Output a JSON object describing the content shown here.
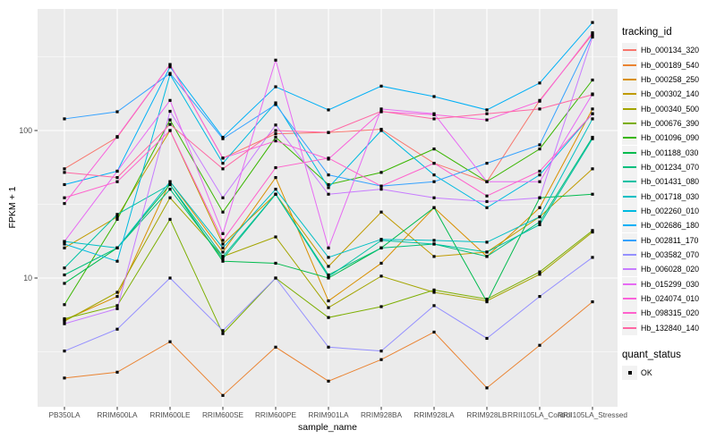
{
  "chart_data": {
    "type": "line",
    "title": "",
    "xlabel": "sample_name",
    "ylabel": "FPKM + 1",
    "y_scale": "log10",
    "ylim": [
      1.35,
      650
    ],
    "grid": true,
    "panel_bg": "#EBEBEB",
    "grid_color": "#FFFFFF",
    "legend_key_bg": "#F2F2F2",
    "tick_label_color": "#4D4D4D",
    "point_shape": "filled-square",
    "point_color": "#000000",
    "y_ticks": [
      10,
      100
    ],
    "y_minor_ticks": [
      3.162,
      31.62,
      316.2
    ],
    "categories": [
      "PB350LA",
      "RRIM600LA",
      "RRIM600LE",
      "RRIM600SE",
      "RRIM600PE",
      "RRIM901LA",
      "RRIM928BA",
      "RRIM928LA",
      "RRIM928LB",
      "RRII105LA_Control",
      "RRII105LA_Stressed"
    ],
    "legend": {
      "color_title": "tracking_id",
      "shape_title": "quant_status",
      "shape_items": [
        {
          "label": "OK"
        }
      ]
    },
    "series": [
      {
        "name": "Hb_000134_320",
        "color": "#F8766D",
        "values": [
          55,
          90,
          280,
          65,
          95,
          97,
          102,
          60,
          45,
          160,
          450
        ]
      },
      {
        "name": "Hb_000189_540",
        "color": "#EA8331",
        "values": [
          2.1,
          2.3,
          3.7,
          1.6,
          3.4,
          2.0,
          2.8,
          4.3,
          1.8,
          3.5,
          6.9
        ]
      },
      {
        "name": "Hb_000258_250",
        "color": "#D89000",
        "values": [
          5.2,
          7.5,
          45,
          15,
          48,
          7.0,
          12.6,
          30,
          14,
          30,
          140
        ]
      },
      {
        "name": "Hb_000302_140",
        "color": "#C09B00",
        "values": [
          16,
          26,
          100,
          17,
          37,
          12,
          28,
          14,
          15,
          26,
          55
        ]
      },
      {
        "name": "Hb_000340_500",
        "color": "#A3A500",
        "values": [
          5.1,
          8.0,
          35,
          14,
          19,
          6.3,
          10.3,
          8.0,
          7.0,
          10.6,
          20.5
        ]
      },
      {
        "name": "Hb_000676_390",
        "color": "#7CAE00",
        "values": [
          5.3,
          6.5,
          25,
          4.2,
          10,
          5.4,
          6.4,
          8.3,
          7.2,
          11,
          21
        ]
      },
      {
        "name": "Hb_001096_090",
        "color": "#39B600",
        "values": [
          6.6,
          25,
          118,
          28,
          90,
          43,
          52,
          75,
          45,
          75,
          220
        ]
      },
      {
        "name": "Hb_001188_030",
        "color": "#00BB4E",
        "values": [
          9.2,
          16,
          43,
          13,
          12.6,
          10,
          16,
          30,
          6.9,
          35,
          37
        ]
      },
      {
        "name": "Hb_001234_070",
        "color": "#00BF7D",
        "values": [
          10.5,
          16,
          40,
          13.5,
          37,
          10.5,
          16,
          17,
          14,
          24,
          90
        ]
      },
      {
        "name": "Hb_001431_080",
        "color": "#00C1A3",
        "values": [
          11.7,
          27,
          43,
          14,
          37,
          10.2,
          18,
          17,
          15,
          23,
          88
        ]
      },
      {
        "name": "Hb_001718_030",
        "color": "#00BFC4",
        "values": [
          17.7,
          16,
          45,
          16,
          40,
          13.8,
          18.3,
          18,
          17.5,
          26,
          120
        ]
      },
      {
        "name": "Hb_002260_010",
        "color": "#00BAE0",
        "values": [
          17,
          13,
          240,
          60,
          154,
          41,
          100,
          50,
          30,
          50,
          130
        ]
      },
      {
        "name": "Hb_002686_180",
        "color": "#00B0F6",
        "values": [
          43,
          53,
          270,
          90,
          198,
          138,
          200,
          170,
          138,
          210,
          540
        ]
      },
      {
        "name": "Hb_002811_170",
        "color": "#35A2FF",
        "values": [
          120,
          134,
          244,
          88,
          150,
          50,
          42,
          45,
          60,
          80,
          440
        ]
      },
      {
        "name": "Hb_003582_070",
        "color": "#9590FF",
        "values": [
          3.2,
          4.5,
          10,
          4.4,
          10,
          3.4,
          3.2,
          6.5,
          3.9,
          7.5,
          13.8
        ]
      },
      {
        "name": "Hb_006028_020",
        "color": "#C77CFF",
        "values": [
          4.9,
          6.2,
          135,
          35,
          109,
          37,
          40,
          35,
          33,
          35,
          430
        ]
      },
      {
        "name": "Hb_015299_030",
        "color": "#E76BF3",
        "values": [
          17.7,
          53,
          160,
          20,
          300,
          16,
          140,
          130,
          45,
          45,
          177
        ]
      },
      {
        "name": "Hb_024074_010",
        "color": "#FA62DB",
        "values": [
          32,
          91,
          280,
          65,
          85,
          64,
          134,
          128,
          118,
          158,
          460
        ]
      },
      {
        "name": "Hb_098315_020",
        "color": "#FF61CC",
        "values": [
          35,
          45,
          100,
          18,
          56,
          65,
          42,
          60,
          36,
          53,
          130
        ]
      },
      {
        "name": "Hb_132840_140",
        "color": "#FF67A4",
        "values": [
          52,
          48,
          110,
          55,
          100,
          97,
          135,
          120,
          130,
          140,
          175
        ]
      }
    ]
  }
}
